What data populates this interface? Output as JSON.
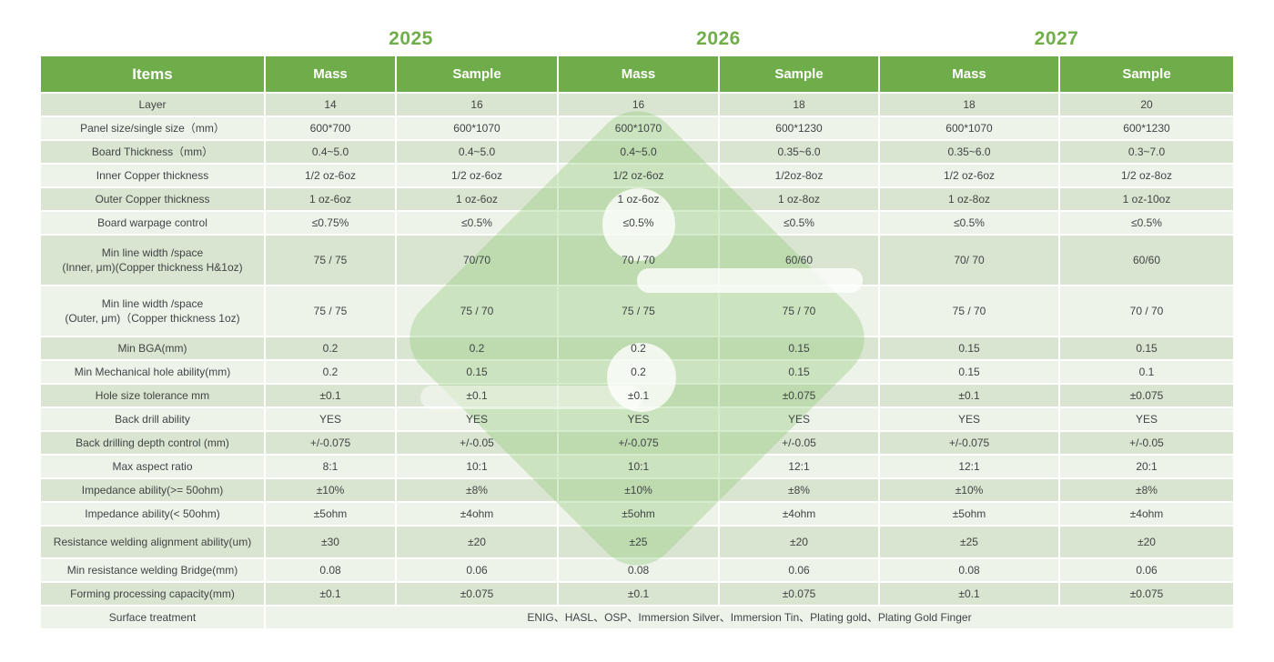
{
  "years": [
    "2025",
    "2026",
    "2027"
  ],
  "table": {
    "header_cells": [
      "Items",
      "Mass",
      "Sample",
      "Mass",
      "Sample",
      "Mass",
      "Sample"
    ],
    "rows": [
      {
        "label": "Layer",
        "values": [
          "14",
          "16",
          "16",
          "18",
          "18",
          "20"
        ]
      },
      {
        "label": "Panel size/single size（mm）",
        "values": [
          "600*700",
          "600*1070",
          "600*1070",
          "600*1230",
          "600*1070",
          "600*1230"
        ]
      },
      {
        "label": "Board Thickness（mm）",
        "values": [
          "0.4~5.0",
          "0.4~5.0",
          "0.4~5.0",
          "0.35~6.0",
          "0.35~6.0",
          "0.3~7.0"
        ]
      },
      {
        "label": "Inner Copper thickness",
        "values": [
          "1/2 oz-6oz",
          "1/2 oz-6oz",
          "1/2 oz-6oz",
          "1/2oz-8oz",
          "1/2 oz-6oz",
          "1/2 oz-8oz"
        ]
      },
      {
        "label": "Outer Copper thickness",
        "values": [
          "1 oz-6oz",
          "1 oz-6oz",
          "1 oz-6oz",
          "1 oz-8oz",
          "1 oz-8oz",
          "1 oz-10oz"
        ]
      },
      {
        "label": "Board warpage control",
        "values": [
          "≤0.75%",
          "≤0.5%",
          "≤0.5%",
          "≤0.5%",
          "≤0.5%",
          "≤0.5%"
        ]
      },
      {
        "label": "Min line width /space\n(Inner, μm)(Copper thickness H&1oz)",
        "values": [
          "75 / 75",
          "70/70",
          "70 / 70",
          "60/60",
          "70/ 70",
          "60/60"
        ]
      },
      {
        "label": "Min line width /space\n(Outer, μm)（Copper thickness 1oz)",
        "values": [
          "75 / 75",
          "75 / 70",
          "75 / 75",
          "75 / 70",
          "75 / 70",
          "70 / 70"
        ]
      },
      {
        "label": "Min BGA(mm)",
        "values": [
          "0.2",
          "0.2",
          "0.2",
          "0.15",
          "0.15",
          "0.15"
        ]
      },
      {
        "label": "Min Mechanical hole ability(mm)",
        "values": [
          "0.2",
          "0.15",
          "0.2",
          "0.15",
          "0.15",
          "0.1"
        ]
      },
      {
        "label": "Hole size tolerance  mm",
        "values": [
          "±0.1",
          "±0.1",
          "±0.1",
          "±0.075",
          "±0.1",
          "±0.075"
        ]
      },
      {
        "label": "Back drill ability",
        "values": [
          "YES",
          "YES",
          "YES",
          "YES",
          "YES",
          "YES"
        ]
      },
      {
        "label": "Back drilling depth control (mm)",
        "values": [
          "+/-0.075",
          "+/-0.05",
          "+/-0.075",
          "+/-0.05",
          "+/-0.075",
          "+/-0.05"
        ]
      },
      {
        "label": "Max aspect ratio",
        "values": [
          "8:1",
          "10:1",
          "10:1",
          "12:1",
          "12:1",
          "20:1"
        ]
      },
      {
        "label": "Impedance ability(>= 50ohm)",
        "values": [
          "±10%",
          "±8%",
          "±10%",
          "±8%",
          "±10%",
          "±8%"
        ]
      },
      {
        "label": "Impedance ability(< 50ohm)",
        "values": [
          "±5ohm",
          "±4ohm",
          "±5ohm",
          "±4ohm",
          "±5ohm",
          "±4ohm"
        ]
      },
      {
        "label": "Resistance welding alignment ability(um)",
        "values": [
          "±30",
          "±20",
          "±25",
          "±20",
          "±25",
          "±20"
        ]
      },
      {
        "label": "Min resistance welding Bridge(mm)",
        "values": [
          "0.08",
          "0.06",
          "0.08",
          "0.06",
          "0.08",
          "0.06"
        ]
      },
      {
        "label": "Forming processing capacity(mm)",
        "values": [
          "±0.1",
          "±0.075",
          "±0.1",
          "±0.075",
          "±0.1",
          "±0.075"
        ]
      },
      {
        "label": "Surface treatment",
        "span_value": "ENIG、HASL、OSP、Immersion Silver、Immersion Tin、Plating gold、Plating Gold Finger"
      }
    ]
  },
  "colors": {
    "header_green": "#6fac4a",
    "year_green": "#6fae49",
    "row_dark": "#d9e5d0",
    "row_light": "#eef3ea",
    "text": "#3f4545",
    "watermark_green": "#8bc370"
  }
}
